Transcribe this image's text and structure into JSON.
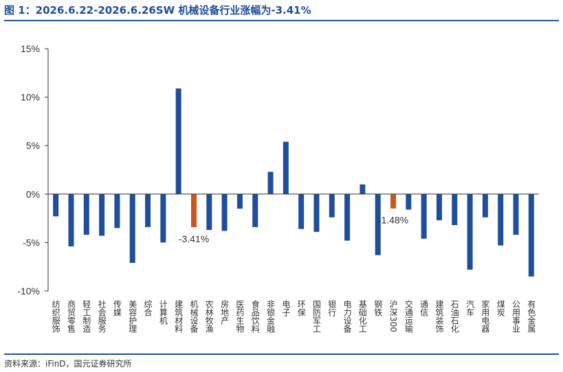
{
  "title": "图 1：2026.6.22-2026.6.26SW 机械设备行业涨幅为-3.41%",
  "source": "资料来源：iFinD，国元证券研究所",
  "colors": {
    "default_bar": "#1f4e9c",
    "highlight_bar": "#c9571f",
    "axis": "#333333"
  },
  "chart_data": {
    "type": "bar",
    "ylim": [
      -10,
      15
    ],
    "yticks": [
      -10,
      -5,
      0,
      5,
      10,
      15
    ],
    "ytick_labels": [
      "-10%",
      "-5%",
      "0%",
      "5%",
      "10%",
      "15%"
    ],
    "grid": false,
    "categories": [
      "纺织服饰",
      "商贸零售",
      "轻工制造",
      "社会服务",
      "传媒",
      "美容护理",
      "综合",
      "计算机",
      "建筑材料",
      "机械设备",
      "农林牧渔",
      "房地产",
      "医药生物",
      "食品饮料",
      "非银金融",
      "电子",
      "环保",
      "国防军工",
      "银行",
      "电力设备",
      "基础化工",
      "钢铁",
      "沪深300",
      "交通运输",
      "通信",
      "建筑装饰",
      "石油石化",
      "汽车",
      "家用电器",
      "煤炭",
      "公用事业",
      "有色金属"
    ],
    "values": [
      -2.3,
      -5.4,
      -4.2,
      -4.3,
      -3.5,
      -7.1,
      -3.4,
      -5.0,
      10.9,
      -3.41,
      -3.7,
      -3.8,
      -1.5,
      -3.4,
      2.3,
      5.4,
      -3.6,
      -3.9,
      -2.4,
      -4.8,
      1.0,
      -6.3,
      -1.48,
      -1.6,
      -4.6,
      -2.7,
      -3.2,
      -7.8,
      -2.4,
      -5.3,
      -4.2,
      -8.5
    ],
    "highlight": [
      "机械设备",
      "沪深300"
    ],
    "data_labels": [
      {
        "category": "机械设备",
        "text": "-3.41%"
      },
      {
        "category": "沪深300",
        "text": "-1.48%"
      }
    ]
  }
}
